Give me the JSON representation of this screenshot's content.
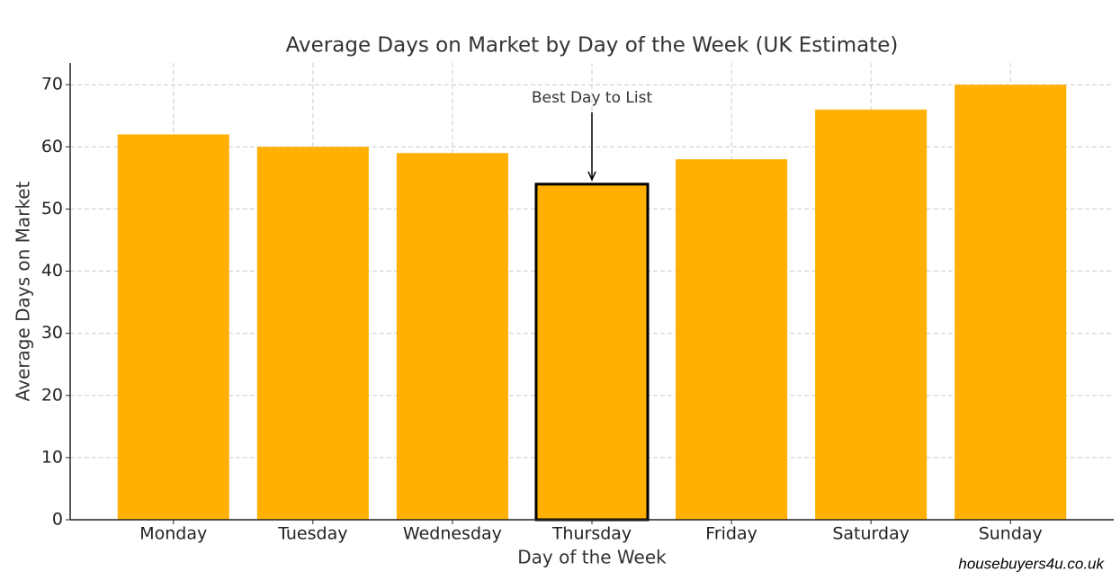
{
  "chart_data": {
    "type": "bar",
    "title": "Average Days on Market by Day of the Week (UK Estimate)",
    "x_label": "Day of the Week",
    "y_label": "Average Days on Market",
    "categories": [
      "Monday",
      "Tuesday",
      "Wednesday",
      "Thursday",
      "Friday",
      "Saturday",
      "Sunday"
    ],
    "values": [
      62,
      60,
      59,
      54,
      58,
      66,
      70
    ],
    "color": "#ffb000",
    "ylim": [
      0,
      73.5
    ],
    "yticks": [
      0,
      10,
      20,
      30,
      40,
      50,
      60,
      70
    ],
    "grid": true,
    "annotation": {
      "text": "Best Day to List",
      "category": "Thursday"
    },
    "watermark": "housebuyers4u.co.uk"
  }
}
